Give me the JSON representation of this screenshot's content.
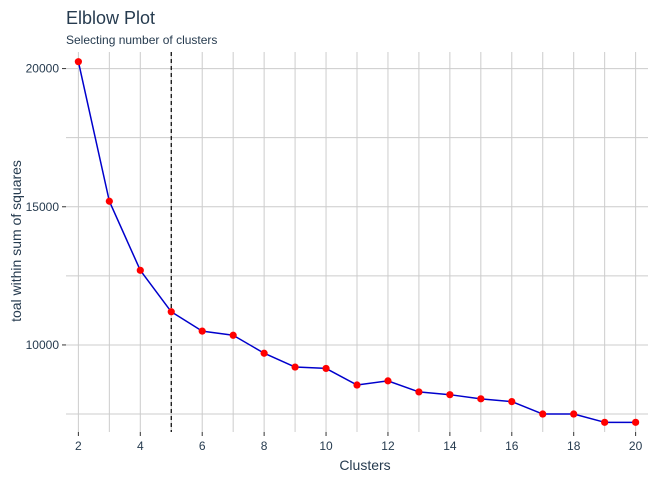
{
  "chart_data": {
    "type": "line",
    "title": "Elblow Plot",
    "subtitle": "Selecting number of clusters",
    "xlabel": "Clusters",
    "ylabel": "toal within sum of squares",
    "xlim": [
      1.6,
      20.4
    ],
    "ylim": [
      6850,
      20600
    ],
    "x_ticks": [
      2,
      4,
      6,
      8,
      10,
      12,
      14,
      16,
      18,
      20
    ],
    "y_ticks": [
      10000,
      15000,
      20000
    ],
    "x_tick_labels": [
      "2",
      "4",
      "6",
      "8",
      "10",
      "12",
      "14",
      "16",
      "18",
      "20"
    ],
    "y_tick_labels": [
      "10000",
      "15000",
      "20000"
    ],
    "x_minor_grid": [
      3,
      5,
      7,
      9,
      11,
      13,
      15,
      17,
      19
    ],
    "y_minor_grid": [
      7500,
      12500,
      17500
    ],
    "grid": true,
    "reference_line": {
      "axis": "x",
      "value": 5,
      "style": "dashed",
      "color": "#000000"
    },
    "series": [
      {
        "line_color": "#0000cc",
        "point_color": "#ff0000",
        "x": [
          2,
          3,
          4,
          5,
          6,
          7,
          8,
          9,
          10,
          11,
          12,
          13,
          14,
          15,
          16,
          17,
          18,
          19,
          20
        ],
        "values": [
          20250,
          15200,
          12700,
          11200,
          10500,
          10350,
          9700,
          9200,
          9150,
          8550,
          8700,
          8300,
          8200,
          8050,
          7950,
          7500,
          7500,
          7200,
          7200
        ]
      }
    ]
  }
}
